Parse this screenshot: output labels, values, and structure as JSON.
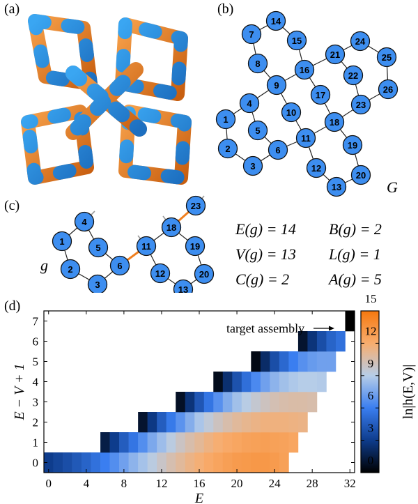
{
  "panels": {
    "a": "(a)",
    "b": "(b)",
    "c": "(c)",
    "d": "(d)"
  },
  "graph_G": {
    "label": "G",
    "nodes": [
      {
        "id": "1"
      },
      {
        "id": "2"
      },
      {
        "id": "3"
      },
      {
        "id": "4"
      },
      {
        "id": "5"
      },
      {
        "id": "6"
      },
      {
        "id": "7"
      },
      {
        "id": "8"
      },
      {
        "id": "9"
      },
      {
        "id": "10"
      },
      {
        "id": "11"
      },
      {
        "id": "12"
      },
      {
        "id": "13"
      },
      {
        "id": "14"
      },
      {
        "id": "15"
      },
      {
        "id": "16"
      },
      {
        "id": "17"
      },
      {
        "id": "18"
      },
      {
        "id": "19"
      },
      {
        "id": "20"
      },
      {
        "id": "21"
      },
      {
        "id": "22"
      },
      {
        "id": "23"
      },
      {
        "id": "24"
      },
      {
        "id": "25"
      },
      {
        "id": "26"
      }
    ],
    "edges": [
      [
        "1",
        "2"
      ],
      [
        "2",
        "3"
      ],
      [
        "3",
        "6"
      ],
      [
        "6",
        "5"
      ],
      [
        "5",
        "4"
      ],
      [
        "4",
        "1"
      ],
      [
        "4",
        "9"
      ],
      [
        "9",
        "10"
      ],
      [
        "10",
        "11"
      ],
      [
        "11",
        "6"
      ],
      [
        "9",
        "8"
      ],
      [
        "8",
        "7"
      ],
      [
        "7",
        "14"
      ],
      [
        "14",
        "15"
      ],
      [
        "15",
        "16"
      ],
      [
        "16",
        "9"
      ],
      [
        "16",
        "17"
      ],
      [
        "17",
        "18"
      ],
      [
        "18",
        "11"
      ],
      [
        "11",
        "12"
      ],
      [
        "12",
        "13"
      ],
      [
        "13",
        "20"
      ],
      [
        "20",
        "19"
      ],
      [
        "19",
        "18"
      ],
      [
        "16",
        "21"
      ],
      [
        "21",
        "22"
      ],
      [
        "22",
        "23"
      ],
      [
        "23",
        "18"
      ],
      [
        "21",
        "24"
      ],
      [
        "24",
        "25"
      ],
      [
        "25",
        "26"
      ],
      [
        "26",
        "23"
      ]
    ]
  },
  "graph_g": {
    "label": "g",
    "nodes": [
      {
        "id": "1"
      },
      {
        "id": "2"
      },
      {
        "id": "3"
      },
      {
        "id": "4"
      },
      {
        "id": "5"
      },
      {
        "id": "6"
      },
      {
        "id": "11"
      },
      {
        "id": "12"
      },
      {
        "id": "13"
      },
      {
        "id": "18"
      },
      {
        "id": "19"
      },
      {
        "id": "20"
      },
      {
        "id": "23"
      }
    ],
    "edges": [
      [
        "1",
        "2"
      ],
      [
        "2",
        "3"
      ],
      [
        "3",
        "6"
      ],
      [
        "6",
        "5"
      ],
      [
        "5",
        "4"
      ],
      [
        "4",
        "1"
      ],
      [
        "11",
        "12"
      ],
      [
        "12",
        "13"
      ],
      [
        "13",
        "20"
      ],
      [
        "20",
        "19"
      ],
      [
        "19",
        "18"
      ],
      [
        "18",
        "11"
      ]
    ],
    "highlighted_edges": [
      [
        "6",
        "11"
      ],
      [
        "18",
        "23"
      ]
    ]
  },
  "stats": {
    "E": "E(g) = 14",
    "V": "V(g) = 13",
    "C": "C(g) = 2",
    "B": "B(g) = 2",
    "L": "L(g) = 1",
    "A": "A(g) = 5"
  },
  "chart_data": {
    "type": "heatmap",
    "xlabel": "E",
    "ylabel": "E − V + 1",
    "colorbar_label": "ln|h(E,V)|",
    "x_ticks": [
      0,
      4,
      8,
      12,
      16,
      20,
      24,
      28,
      32
    ],
    "y_ticks": [
      0,
      1,
      2,
      3,
      4,
      5,
      6,
      7
    ],
    "colorbar_ticks": [
      0,
      3,
      6,
      9,
      12,
      15
    ],
    "xlim": [
      -0.5,
      32.5
    ],
    "ylim": [
      -0.5,
      7.5
    ],
    "color_range": [
      0,
      15
    ],
    "annotation": "target assembly",
    "target": {
      "E": 32,
      "loops": 7
    },
    "rows": [
      {
        "loops": 0,
        "E_start": 0,
        "values": [
          3.0,
          3.4,
          3.8,
          4.3,
          4.8,
          5.4,
          6.0,
          6.6,
          7.3,
          8.0,
          8.6,
          9.2,
          9.8,
          10.4,
          10.9,
          11.4,
          11.8,
          12.2,
          12.5,
          12.8,
          13.0,
          13.1,
          13.2,
          13.2,
          13.0,
          12.7
        ]
      },
      {
        "loops": 1,
        "E_start": 6,
        "values": [
          1.5,
          3.0,
          4.5,
          5.6,
          6.6,
          7.6,
          8.4,
          9.2,
          9.9,
          10.5,
          11.0,
          11.5,
          11.9,
          12.2,
          12.4,
          12.6,
          12.7,
          12.8,
          12.7,
          12.6,
          12.4
        ]
      },
      {
        "loops": 2,
        "E_start": 10,
        "values": [
          1.0,
          2.8,
          4.5,
          5.8,
          6.8,
          7.8,
          8.7,
          9.4,
          10.0,
          10.5,
          10.9,
          11.2,
          11.4,
          11.6,
          11.6,
          11.6,
          11.5,
          11.4
        ]
      },
      {
        "loops": 3,
        "E_start": 14,
        "values": [
          0.8,
          2.6,
          4.2,
          5.6,
          6.7,
          7.7,
          8.5,
          9.1,
          9.6,
          10.0,
          10.3,
          10.5,
          10.6,
          10.6,
          10.5
        ]
      },
      {
        "loops": 4,
        "E_start": 18,
        "values": [
          0.6,
          2.4,
          4.0,
          5.3,
          6.4,
          7.3,
          8.0,
          8.5,
          8.8,
          9.0,
          9.0,
          8.9
        ]
      },
      {
        "loops": 5,
        "E_start": 22,
        "values": [
          0.4,
          2.2,
          3.8,
          5.0,
          6.0,
          6.7,
          7.1,
          7.3,
          7.3
        ]
      },
      {
        "loops": 6,
        "E_start": 27,
        "values": [
          1.0,
          2.6,
          3.8,
          4.8,
          5.4
        ]
      },
      {
        "loops": 7,
        "E_start": 32,
        "values": [
          0.0
        ]
      }
    ]
  }
}
